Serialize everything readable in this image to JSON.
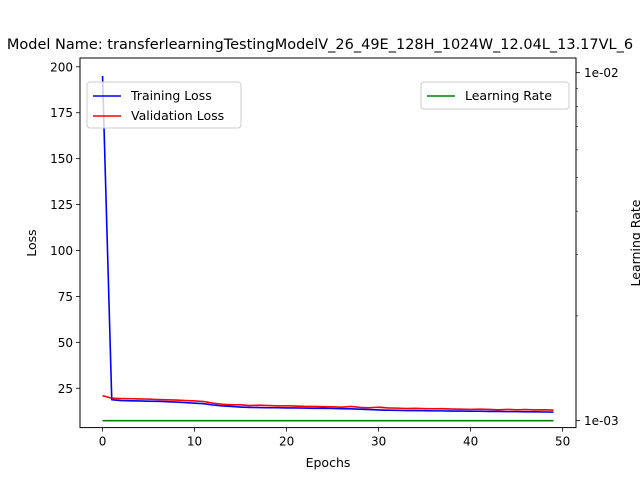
{
  "chart_data": {
    "type": "line",
    "title": "Model Name: transferlearningTestingModelV_26_49E_128H_1024W_12.04L_13.17VL_6",
    "xlabel": "Epochs",
    "ylabel": "Loss",
    "y2label": "Learning Rate",
    "xlim": [
      -2.45,
      51.45
    ],
    "ylim": [
      3.6,
      204.8
    ],
    "y2lim": [
      0.000955,
      0.01102
    ],
    "y2scale": "log",
    "xticks": [
      0,
      10,
      20,
      30,
      40,
      50
    ],
    "yticks": [
      25,
      50,
      75,
      100,
      125,
      150,
      175,
      200
    ],
    "y2ticks": [
      0.001,
      0.01
    ],
    "y2ticklabels": [
      "1e-03",
      "1e-02"
    ],
    "grid": false,
    "legend_left": {
      "placement": "upper-left",
      "entries": [
        "Training Loss",
        "Validation Loss"
      ]
    },
    "legend_right": {
      "placement": "upper-right",
      "entries": [
        "Learning Rate"
      ]
    },
    "x": [
      0,
      1,
      2,
      3,
      4,
      5,
      6,
      7,
      8,
      9,
      10,
      11,
      12,
      13,
      14,
      15,
      16,
      17,
      18,
      19,
      20,
      21,
      22,
      23,
      24,
      25,
      26,
      27,
      28,
      29,
      30,
      31,
      32,
      33,
      34,
      35,
      36,
      37,
      38,
      39,
      40,
      41,
      42,
      43,
      44,
      45,
      46,
      47,
      48,
      49
    ],
    "series": [
      {
        "name": "Training Loss",
        "axis": "left",
        "color": "#0000ff",
        "values": [
          195.0,
          18.8,
          18.3,
          18.2,
          18.1,
          18.0,
          17.9,
          17.7,
          17.5,
          17.2,
          16.9,
          16.6,
          15.9,
          15.4,
          15.1,
          14.8,
          14.6,
          14.5,
          14.4,
          14.4,
          14.3,
          14.3,
          14.2,
          14.1,
          14.1,
          14.0,
          13.9,
          13.8,
          13.6,
          13.4,
          13.2,
          13.1,
          13.0,
          12.9,
          12.9,
          12.8,
          12.7,
          12.7,
          12.6,
          12.6,
          12.5,
          12.5,
          12.4,
          12.4,
          12.3,
          12.3,
          12.2,
          12.2,
          12.1,
          12.04
        ]
      },
      {
        "name": "Validation Loss",
        "axis": "left",
        "color": "#ff0000",
        "values": [
          21.0,
          19.6,
          19.4,
          19.3,
          19.2,
          19.1,
          18.9,
          18.7,
          18.6,
          18.3,
          18.1,
          17.8,
          16.9,
          16.3,
          16.0,
          16.0,
          15.6,
          15.8,
          15.6,
          15.4,
          15.5,
          15.3,
          15.1,
          15.1,
          15.0,
          14.9,
          14.7,
          15.1,
          14.6,
          14.4,
          14.7,
          14.3,
          14.2,
          14.0,
          14.1,
          13.9,
          13.8,
          13.9,
          13.7,
          13.6,
          13.5,
          13.6,
          13.5,
          13.3,
          13.5,
          13.3,
          13.4,
          13.2,
          13.3,
          13.17
        ]
      },
      {
        "name": "Learning Rate",
        "axis": "right",
        "color": "#008000",
        "values": [
          0.001,
          0.001,
          0.001,
          0.001,
          0.001,
          0.001,
          0.001,
          0.001,
          0.001,
          0.001,
          0.001,
          0.001,
          0.001,
          0.001,
          0.001,
          0.001,
          0.001,
          0.001,
          0.001,
          0.001,
          0.001,
          0.001,
          0.001,
          0.001,
          0.001,
          0.001,
          0.001,
          0.001,
          0.001,
          0.001,
          0.001,
          0.001,
          0.001,
          0.001,
          0.001,
          0.001,
          0.001,
          0.001,
          0.001,
          0.001,
          0.001,
          0.001,
          0.001,
          0.001,
          0.001,
          0.001,
          0.001,
          0.001,
          0.001,
          0.001
        ]
      }
    ]
  }
}
